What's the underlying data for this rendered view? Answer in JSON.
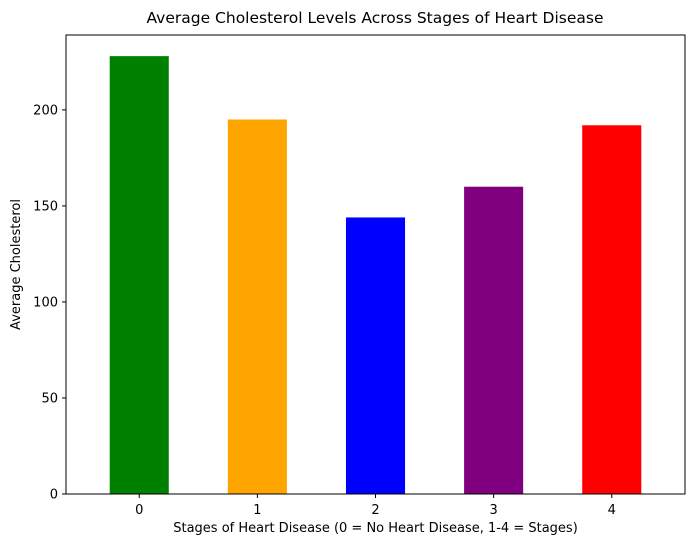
{
  "chart_data": {
    "type": "bar",
    "title": "Average Cholesterol Levels Across Stages of Heart Disease",
    "xlabel": "Stages of Heart Disease (0 = No Heart Disease, 1-4 = Stages)",
    "ylabel": "Average Cholesterol",
    "categories": [
      "0",
      "1",
      "2",
      "3",
      "4"
    ],
    "values": [
      228,
      195,
      144,
      160,
      192
    ],
    "colors": [
      "#008000",
      "#ffa500",
      "#0000ff",
      "#800080",
      "#ff0000"
    ],
    "ylim": [
      0,
      239
    ],
    "yticks": [
      0,
      50,
      100,
      150,
      200
    ],
    "grid": false,
    "legend": "none"
  }
}
